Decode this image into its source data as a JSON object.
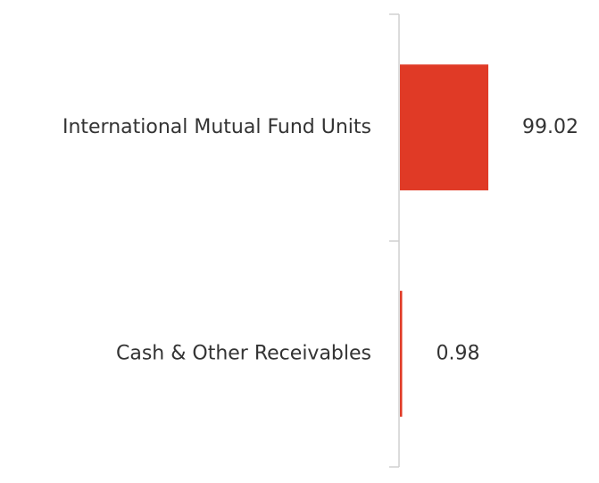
{
  "chart_data": {
    "type": "bar",
    "orientation": "horizontal",
    "categories": [
      "International Mutual Fund Units",
      "Cash & Other Receivables"
    ],
    "values": [
      99.02,
      0.98
    ],
    "value_labels": [
      "99.02",
      "0.98"
    ],
    "xlim": [
      0,
      100
    ],
    "grid": false,
    "legend": "none",
    "bar_color": "#e03a26"
  }
}
